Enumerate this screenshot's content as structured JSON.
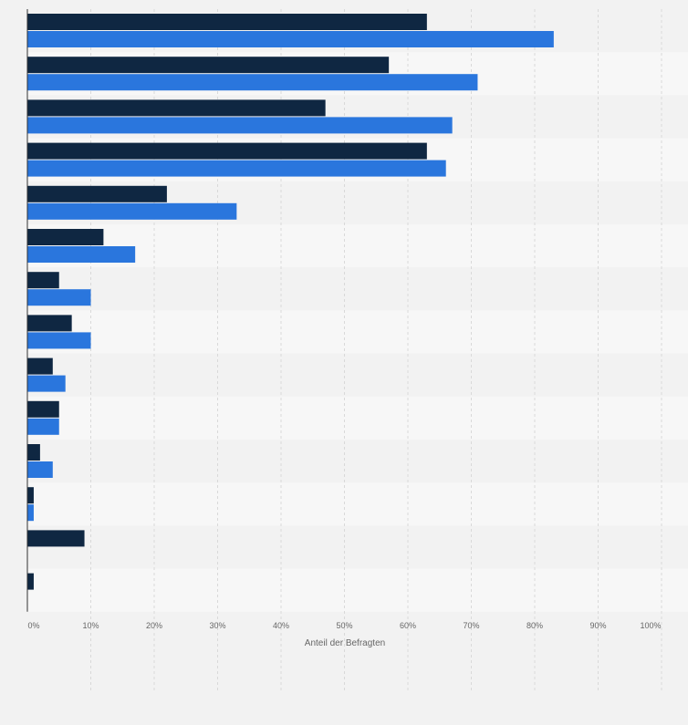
{
  "chart_data": {
    "type": "bar",
    "orientation": "horizontal",
    "title": "",
    "xlabel": "Anteil der Befragten",
    "ylabel": "",
    "xlim": [
      0,
      100
    ],
    "x_ticks": [
      "0%",
      "10%",
      "20%",
      "30%",
      "40%",
      "50%",
      "60%",
      "70%",
      "80%",
      "90%",
      "100%"
    ],
    "grid": true,
    "legend": "none",
    "categories": [
      "",
      "",
      "",
      "",
      "",
      "",
      "",
      "",
      "",
      "",
      "",
      "",
      "",
      ""
    ],
    "series": [
      {
        "values": [
          63,
          57,
          47,
          63,
          22,
          12,
          5,
          7,
          4,
          5,
          2,
          1,
          9,
          1
        ]
      },
      {
        "values": [
          83,
          71,
          67,
          66,
          33,
          17,
          10,
          10,
          6,
          5,
          4,
          1,
          0,
          0
        ]
      }
    ],
    "colors": {
      "series_dark": "#0f2742",
      "series_blue": "#2a76dd",
      "band_a": "#f2f2f2",
      "band_b": "#f7f7f7",
      "grid": "#d9d9d9",
      "axis": "#333333",
      "tick_text": "#666666"
    }
  }
}
